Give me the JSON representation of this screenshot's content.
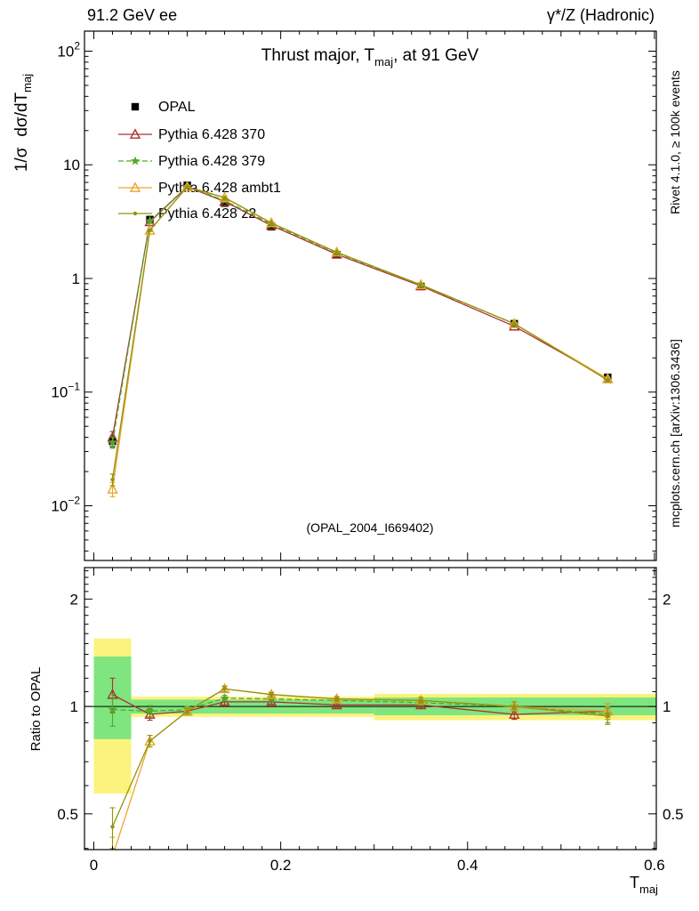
{
  "header": {
    "left": "91.2 GeV ee",
    "right": "γ*/Z (Hadronic)"
  },
  "title": {
    "pre": "Thrust major, T",
    "sub": "maj",
    "post": ", at 91 GeV"
  },
  "ylabel": {
    "p1": "1/σ",
    "p2": "dσ/dT",
    "sub": "maj"
  },
  "ratio_label": "Ratio to OPAL",
  "xlabel": {
    "pre": "T",
    "sub": "maj"
  },
  "watermark": "(OPAL_2004_I669402)",
  "side": {
    "rivet": "Rivet 4.1.0, ≥ 100k events",
    "mcplots": "mcplots.cern.ch [arXiv:1306.3436]"
  },
  "chart_data": {
    "type": "line",
    "x": [
      0.02,
      0.06,
      0.1,
      0.14,
      0.19,
      0.26,
      0.35,
      0.45,
      0.55
    ],
    "xlim": [
      -0.01,
      0.602
    ],
    "x_ticks": [
      {
        "v": 0,
        "label": "0"
      },
      {
        "v": 0.2,
        "label": "0.2"
      },
      {
        "v": 0.4,
        "label": "0.4"
      },
      {
        "v": 0.6,
        "label": "0.6"
      }
    ],
    "main": {
      "ylog": true,
      "ylim": [
        0.0033,
        150
      ],
      "yticks": [
        {
          "v": 100,
          "base": "10",
          "exp": "2"
        },
        {
          "v": 10,
          "base": "10",
          "exp": ""
        },
        {
          "v": 1,
          "base": "1",
          "exp": ""
        },
        {
          "v": 0.1,
          "base": "10",
          "exp": "−1"
        },
        {
          "v": 0.01,
          "base": "10",
          "exp": "−2"
        }
      ],
      "series": [
        {
          "name": "OPAL",
          "color": "#000000",
          "marker": "square",
          "line": "none",
          "values": [
            0.037,
            3.3,
            6.6,
            4.6,
            2.85,
            1.62,
            0.85,
            0.4,
            0.135
          ],
          "yerr": [
            0.004,
            0.1,
            0.15,
            0.1,
            0.06,
            0.04,
            0.025,
            0.015,
            0.007
          ]
        },
        {
          "name": "Pythia 6.428 370",
          "color": "#aa3333",
          "marker": "triangle",
          "line": "solid",
          "values": [
            0.04,
            3.15,
            6.4,
            4.75,
            2.93,
            1.63,
            0.86,
            0.38,
            0.131
          ],
          "yerr": [
            0.005,
            0,
            0,
            0,
            0,
            0,
            0,
            0,
            0.004
          ]
        },
        {
          "name": "Pythia 6.428 379",
          "color": "#53a827",
          "marker": "star",
          "line": "dash",
          "values": [
            0.036,
            3.2,
            6.45,
            4.85,
            3.0,
            1.68,
            0.87,
            0.4,
            0.128
          ],
          "yerr": [
            0.004,
            0,
            0,
            0,
            0,
            0,
            0,
            0,
            0.004
          ]
        },
        {
          "name": "Pythia 6.428 ambt1",
          "color": "#eca52c",
          "marker": "triangle",
          "line": "solid",
          "values": [
            0.014,
            2.65,
            6.4,
            5.15,
            3.08,
            1.7,
            0.88,
            0.4,
            0.131
          ],
          "yerr": [
            0.002,
            0.05,
            0,
            0,
            0,
            0,
            0,
            0,
            0.004
          ]
        },
        {
          "name": "Pythia 6.428 z2",
          "color": "#93930f",
          "marker": "dot",
          "line": "solid",
          "values": [
            0.017,
            2.65,
            6.4,
            5.15,
            3.08,
            1.7,
            0.88,
            0.4,
            0.127
          ],
          "yerr": [
            0.002,
            0.05,
            0,
            0,
            0,
            0,
            0,
            0,
            0.004
          ]
        }
      ]
    },
    "ratio": {
      "ylog": true,
      "ylim": [
        0.397,
        2.45
      ],
      "yticks": [
        {
          "v": 2,
          "label": "2"
        },
        {
          "v": 1,
          "label": "1"
        },
        {
          "v": 0.5,
          "label": "0.5"
        }
      ],
      "bands": {
        "yellow_color": "#fbf37e",
        "green_color": "#7fe57f",
        "yellow": [
          [
            0,
            0.04,
            0.57,
            1.55
          ],
          [
            0.04,
            0.3,
            0.935,
            1.065
          ],
          [
            0.3,
            0.602,
            0.915,
            1.085
          ]
        ],
        "green": [
          [
            0,
            0.04,
            0.81,
            1.38
          ],
          [
            0.04,
            0.3,
            0.955,
            1.045
          ],
          [
            0.3,
            0.602,
            0.945,
            1.06
          ]
        ]
      },
      "series": [
        {
          "name": "Pythia 6.428 370",
          "values": [
            1.08,
            0.95,
            0.97,
            1.03,
            1.03,
            1.01,
            1.01,
            0.95,
            0.97
          ],
          "yerr": [
            0.12,
            0.035,
            0.02,
            0.02,
            0.015,
            0.015,
            0.02,
            0.03,
            0.05
          ]
        },
        {
          "name": "Pythia 6.428 379",
          "values": [
            0.98,
            0.97,
            0.98,
            1.055,
            1.05,
            1.04,
            1.025,
            1.0,
            0.95
          ],
          "yerr": [
            0.1,
            0.035,
            0.02,
            0.02,
            0.015,
            0.015,
            0.02,
            0.03,
            0.05
          ]
        },
        {
          "name": "Pythia 6.428 ambt1",
          "values": [
            0.38,
            0.8,
            0.97,
            1.12,
            1.08,
            1.05,
            1.04,
            1.0,
            0.97
          ],
          "yerr": [
            0.05,
            0.03,
            0.02,
            0.02,
            0.015,
            0.015,
            0.02,
            0.03,
            0.05
          ]
        },
        {
          "name": "Pythia 6.428 z2",
          "values": [
            0.46,
            0.8,
            0.97,
            1.12,
            1.08,
            1.05,
            1.04,
            1.0,
            0.94
          ],
          "yerr": [
            0.06,
            0.03,
            0.02,
            0.02,
            0.015,
            0.015,
            0.02,
            0.03,
            0.05
          ]
        }
      ]
    }
  }
}
